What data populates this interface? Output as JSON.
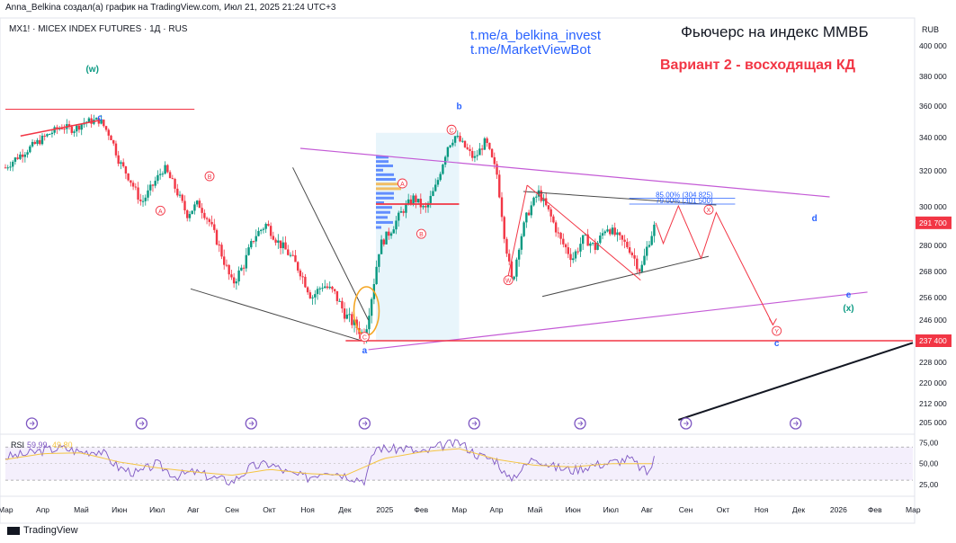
{
  "header": {
    "author_line": "Anna_Belkina создал(а) график на TradingView.com, Июл 21, 2025 21:24 UTC+3",
    "symbol_line": "MX1! · MICEX INDEX FUTURES · 1Д · RUS",
    "link1": "t.me/a_belkina_invest",
    "link2": "t.me/MarketViewBot",
    "title": "Фьючерс на индекс ММВБ",
    "subtitle": "Вариант 2 - восходящая КД"
  },
  "footer": {
    "brand": "TradingView"
  },
  "colors": {
    "up": "#089981",
    "down": "#f23645",
    "text": "#131722",
    "link": "#2962ff",
    "wave_red": "#f23645",
    "wave_blue": "#2962ff",
    "wave_green": "#089981",
    "purple": "#c45bd6",
    "rsi_line": "#7e57c2",
    "rsi_ma": "#f5c542"
  },
  "chart_data": {
    "type": "candlestick",
    "currency_label": "RUB",
    "y_ticks": [
      "400 000",
      "380 000",
      "360 000",
      "340 000",
      "320 000",
      "300 000",
      "280 000",
      "268 000",
      "256 000",
      "246 000",
      "237 400",
      "228 000",
      "220 000",
      "212 000",
      "205 000"
    ],
    "y_tick_values": [
      400000,
      380000,
      360000,
      340000,
      320000,
      300000,
      280000,
      268000,
      256000,
      246000,
      237400,
      228000,
      220000,
      212000,
      205000
    ],
    "x_ticks": [
      "Мар",
      "Апр",
      "Май",
      "Июн",
      "Июл",
      "Авг",
      "Сен",
      "Окт",
      "Ноя",
      "Дек",
      "2025",
      "Фев",
      "Мар",
      "Апр",
      "Май",
      "Июн",
      "Июл",
      "Авг",
      "Сен",
      "Окт",
      "Ноя",
      "Дек",
      "2026",
      "Фев",
      "Мар"
    ],
    "price_labels": [
      {
        "text": "291 700",
        "value": 291700,
        "color": "#f23645"
      },
      {
        "text": "237 400",
        "value": 237400,
        "color": "#f23645"
      }
    ],
    "fib_labels": [
      {
        "text": "85.00% (304 825)",
        "value": 304825
      },
      {
        "text": "79.00% (301 500)",
        "value": 301500
      }
    ],
    "wave_labels": [
      {
        "text": "(w)",
        "color": "green",
        "month": 2.3,
        "value": 383000
      },
      {
        "text": "c",
        "color": "blue",
        "month": 2.5,
        "value": 351000
      },
      {
        "text": "A",
        "color": "red",
        "circled": true,
        "month": 4.1,
        "value": 298000
      },
      {
        "text": "B",
        "color": "red",
        "circled": true,
        "month": 5.4,
        "value": 317000
      },
      {
        "text": "C",
        "color": "red",
        "circled": true,
        "month": 9.5,
        "value": 239000
      },
      {
        "text": "a",
        "color": "blue",
        "month": 9.5,
        "value": 232000
      },
      {
        "text": "A",
        "color": "red",
        "circled": true,
        "month": 10.5,
        "value": 313000
      },
      {
        "text": "B",
        "color": "red",
        "circled": true,
        "month": 11.0,
        "value": 286000
      },
      {
        "text": "C",
        "color": "red",
        "circled": true,
        "month": 11.8,
        "value": 345000
      },
      {
        "text": "b",
        "color": "blue",
        "month": 12.0,
        "value": 358000
      },
      {
        "text": "W",
        "color": "red",
        "circled": true,
        "month": 13.3,
        "value": 264000
      },
      {
        "text": "X",
        "color": "red",
        "circled": true,
        "month": 18.6,
        "value": 298500
      },
      {
        "text": "d",
        "color": "blue",
        "month": 21.4,
        "value": 292500
      },
      {
        "text": "Y",
        "color": "red",
        "circled": true,
        "month": 20.4,
        "value": 241500
      },
      {
        "text": "c",
        "color": "blue",
        "month": 20.4,
        "value": 235000
      },
      {
        "text": "e",
        "color": "blue",
        "month": 22.3,
        "value": 256000
      },
      {
        "text": "(x)",
        "color": "green",
        "month": 22.3,
        "value": 250000
      }
    ],
    "price_path": [
      [
        0.0,
        322000
      ],
      [
        0.3,
        328000
      ],
      [
        0.6,
        333000
      ],
      [
        0.9,
        338000
      ],
      [
        1.2,
        343000
      ],
      [
        1.5,
        347000
      ],
      [
        1.8,
        345000
      ],
      [
        2.1,
        350000
      ],
      [
        2.5,
        351000
      ],
      [
        2.8,
        340000
      ],
      [
        3.0,
        326000
      ],
      [
        3.3,
        315000
      ],
      [
        3.6,
        302000
      ],
      [
        3.9,
        312000
      ],
      [
        4.2,
        322000
      ],
      [
        4.5,
        310000
      ],
      [
        4.8,
        296000
      ],
      [
        5.1,
        302000
      ],
      [
        5.4,
        292000
      ],
      [
        5.7,
        277000
      ],
      [
        6.0,
        262000
      ],
      [
        6.3,
        271000
      ],
      [
        6.6,
        285000
      ],
      [
        6.9,
        291000
      ],
      [
        7.2,
        282000
      ],
      [
        7.5,
        276000
      ],
      [
        7.8,
        268000
      ],
      [
        8.1,
        256000
      ],
      [
        8.4,
        262000
      ],
      [
        8.7,
        258000
      ],
      [
        9.0,
        248000
      ],
      [
        9.3,
        243000
      ],
      [
        9.5,
        239000
      ],
      [
        9.7,
        258000
      ],
      [
        9.9,
        280000
      ],
      [
        10.2,
        288000
      ],
      [
        10.5,
        298000
      ],
      [
        10.8,
        305000
      ],
      [
        11.1,
        298000
      ],
      [
        11.4,
        312000
      ],
      [
        11.7,
        335000
      ],
      [
        11.9,
        341000
      ],
      [
        12.2,
        333000
      ],
      [
        12.4,
        327000
      ],
      [
        12.7,
        338000
      ],
      [
        13.0,
        318000
      ],
      [
        13.2,
        285000
      ],
      [
        13.4,
        262000
      ],
      [
        13.6,
        282000
      ],
      [
        13.8,
        296000
      ],
      [
        14.1,
        308000
      ],
      [
        14.4,
        296000
      ],
      [
        14.7,
        282000
      ],
      [
        15.0,
        274000
      ],
      [
        15.3,
        284000
      ],
      [
        15.6,
        279000
      ],
      [
        15.9,
        290000
      ],
      [
        16.2,
        284000
      ],
      [
        16.5,
        279000
      ],
      [
        16.8,
        268000
      ],
      [
        17.0,
        281000
      ],
      [
        17.2,
        291700
      ]
    ],
    "forecast_path": [
      [
        17.2,
        291700
      ],
      [
        17.4,
        281000
      ],
      [
        17.8,
        300500
      ],
      [
        18.4,
        274000
      ],
      [
        18.8,
        297000
      ],
      [
        20.3,
        244000
      ]
    ],
    "rsi": {
      "label": "RSI",
      "value": "59,99",
      "ma_value": "49,80",
      "ticks": [
        "75,00",
        "50,00",
        "25,00"
      ],
      "tick_values": [
        75,
        50,
        25
      ],
      "ylim": [
        15,
        80
      ],
      "series": [
        [
          0,
          58
        ],
        [
          0.5,
          61
        ],
        [
          1,
          66
        ],
        [
          1.5,
          69
        ],
        [
          2,
          64
        ],
        [
          2.5,
          66
        ],
        [
          3,
          45
        ],
        [
          3.5,
          38
        ],
        [
          4,
          50
        ],
        [
          4.5,
          35
        ],
        [
          5,
          40
        ],
        [
          5.5,
          33
        ],
        [
          6,
          28
        ],
        [
          6.5,
          46
        ],
        [
          7,
          50
        ],
        [
          7.5,
          38
        ],
        [
          8,
          33
        ],
        [
          8.5,
          43
        ],
        [
          9,
          36
        ],
        [
          9.5,
          30
        ],
        [
          9.8,
          70
        ],
        [
          10.2,
          67
        ],
        [
          10.6,
          69
        ],
        [
          11,
          62
        ],
        [
          11.5,
          71
        ],
        [
          12,
          76
        ],
        [
          12.5,
          60
        ],
        [
          13,
          54
        ],
        [
          13.3,
          30
        ],
        [
          13.7,
          45
        ],
        [
          14,
          58
        ],
        [
          14.5,
          46
        ],
        [
          15,
          42
        ],
        [
          15.5,
          48
        ],
        [
          16,
          51
        ],
        [
          16.5,
          56
        ],
        [
          17,
          38
        ],
        [
          17.2,
          60
        ]
      ],
      "ma_series": [
        [
          0,
          55
        ],
        [
          1,
          62
        ],
        [
          2,
          63
        ],
        [
          3,
          52
        ],
        [
          4,
          45
        ],
        [
          5,
          40
        ],
        [
          6,
          36
        ],
        [
          7,
          43
        ],
        [
          8,
          38
        ],
        [
          9,
          36
        ],
        [
          10,
          56
        ],
        [
          11,
          64
        ],
        [
          12,
          68
        ],
        [
          13,
          55
        ],
        [
          14,
          48
        ],
        [
          15,
          46
        ],
        [
          16,
          50
        ],
        [
          17,
          50
        ]
      ]
    },
    "month_range": [
      0,
      24
    ]
  }
}
